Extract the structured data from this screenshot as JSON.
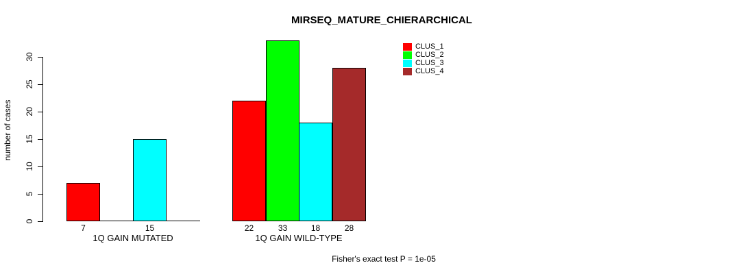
{
  "chart_data": {
    "type": "bar",
    "title": "MIRSEQ_MATURE_CHIERARCHICAL",
    "ylabel": "number of cases",
    "xlabel": "",
    "footnote": "Fisher's exact test P = 1e-05",
    "yticks": [
      0,
      5,
      10,
      15,
      20,
      25,
      30
    ],
    "ylim": [
      0,
      33
    ],
    "grid": false,
    "legend_position": "top-right",
    "background_color": "#ffffff",
    "axis_color": "#000000",
    "categories": [
      "1Q GAIN MUTATED",
      "1Q GAIN WILD-TYPE"
    ],
    "series": [
      {
        "name": "CLUS_1",
        "color": "#ff0000",
        "values": [
          7,
          22
        ]
      },
      {
        "name": "CLUS_2",
        "color": "#00ff00",
        "values": [
          0,
          33
        ]
      },
      {
        "name": "CLUS_3",
        "color": "#00ffff",
        "values": [
          15,
          18
        ]
      },
      {
        "name": "CLUS_4",
        "color": "#a52a2a",
        "values": [
          0,
          28
        ]
      }
    ],
    "bar_value_labels": [
      [
        "7",
        "",
        "15",
        ""
      ],
      [
        "22",
        "33",
        "18",
        "28"
      ]
    ]
  }
}
